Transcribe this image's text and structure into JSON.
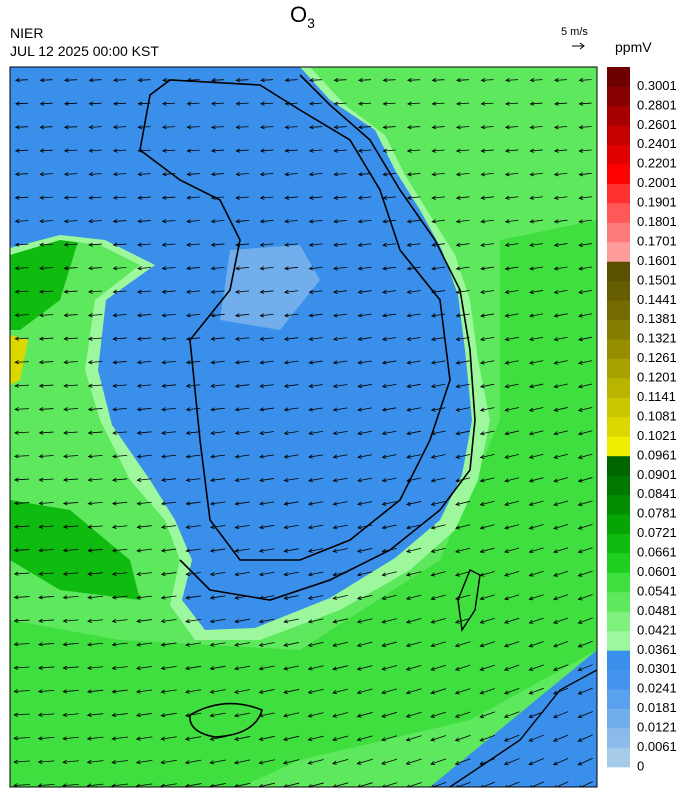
{
  "header": {
    "title_main": "O",
    "title_sub": "3",
    "agency": "NIER",
    "timestamp": "JUL 12 2025 00:00 KST",
    "wind_scale": "5 m/s"
  },
  "colorbar": {
    "unit": "ppmV",
    "levels": [
      0,
      0.0061,
      0.0121,
      0.0181,
      0.0241,
      0.0301,
      0.0361,
      0.0421,
      0.0481,
      0.0541,
      0.0601,
      0.0661,
      0.0721,
      0.0781,
      0.0841,
      0.0901,
      0.0961,
      0.1021,
      0.1081,
      0.1141,
      0.1201,
      0.1261,
      0.1321,
      0.1381,
      0.1441,
      0.1501,
      0.1601,
      0.1701,
      0.1801,
      0.1901,
      0.2001,
      0.2201,
      0.2401,
      0.2601,
      0.2801,
      0.3001
    ],
    "colors": [
      "#a6cbe9",
      "#8cbbea",
      "#72aeec",
      "#5aa1ee",
      "#4595ee",
      "#3a8fea",
      "#9df89d",
      "#7ef07e",
      "#5ee85e",
      "#3edf3e",
      "#20d020",
      "#10bb10",
      "#05a505",
      "#008e00",
      "#007800",
      "#006400",
      "#f0ee00",
      "#ddd700",
      "#cbc600",
      "#b8b400",
      "#a6a200",
      "#958f00",
      "#847d00",
      "#746c00",
      "#665d00",
      "#5a5000",
      "#ff9c9c",
      "#ff7a7a",
      "#ff5858",
      "#ff3030",
      "#ff0000",
      "#e00000",
      "#c40000",
      "#a60000",
      "#880000",
      "#6e0000"
    ]
  }
}
